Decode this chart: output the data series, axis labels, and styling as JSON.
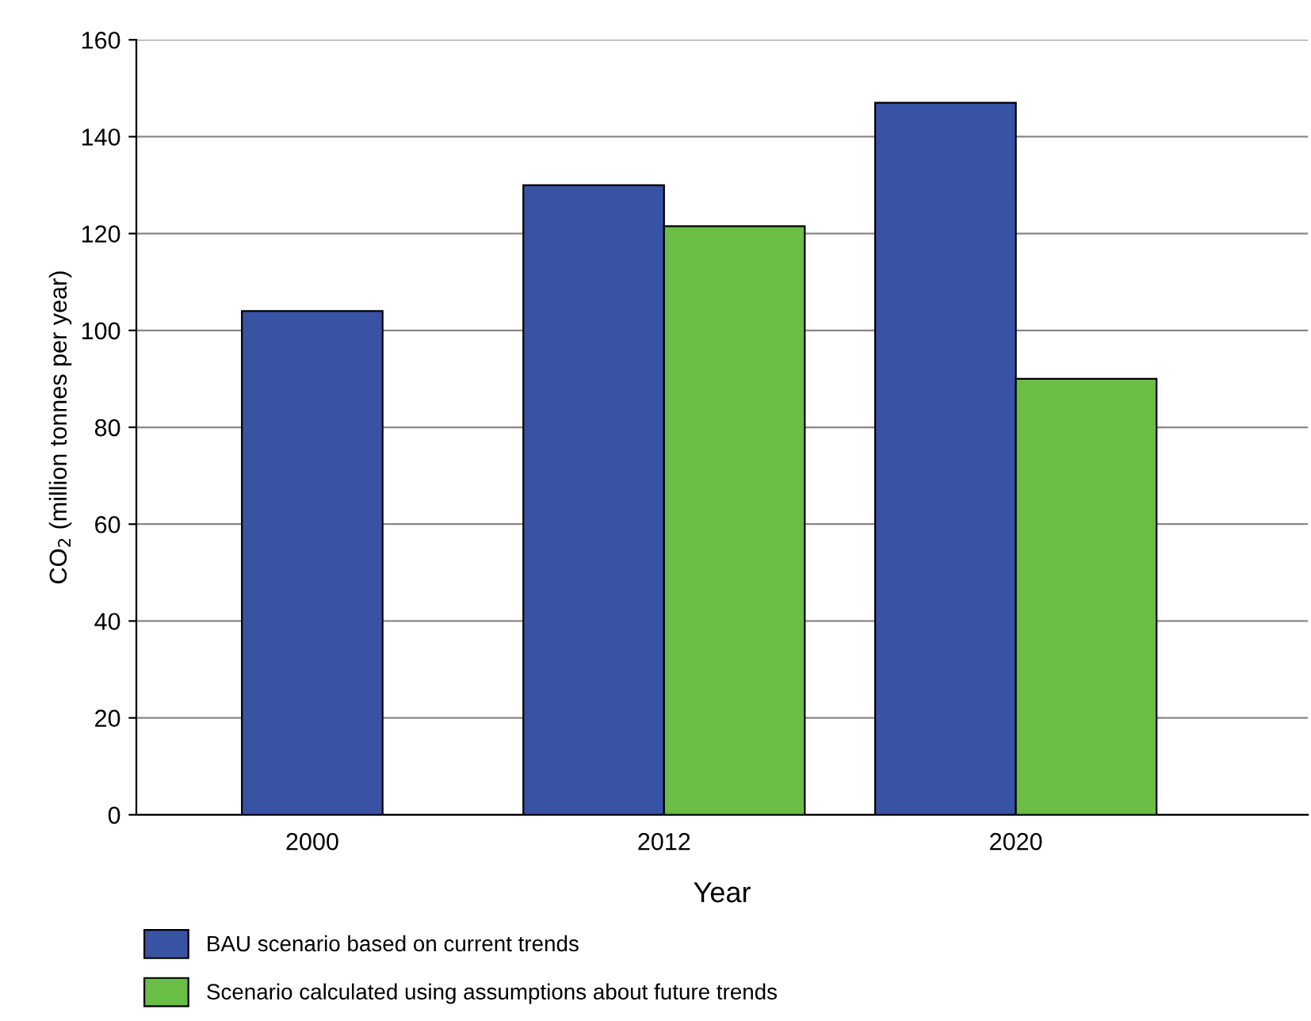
{
  "chart_data": {
    "type": "bar",
    "xlabel": "Year",
    "ylabel": "CO$_{2}$ (million tonnes per year)",
    "categories": [
      "2000",
      "2012",
      "2020"
    ],
    "series": [
      {
        "name": "BAU scenario based on current trends",
        "color": "#3953a4",
        "values": [
          104,
          130,
          147
        ]
      },
      {
        "name": "Scenario calculated using assumptions about future trends",
        "color": "#6abd45",
        "values": [
          null,
          121.5,
          90
        ]
      }
    ],
    "ylim": [
      0,
      160
    ],
    "yticks": [
      0,
      20,
      40,
      60,
      80,
      100,
      120,
      140,
      160
    ],
    "grid": "y",
    "legend": "bottom"
  }
}
